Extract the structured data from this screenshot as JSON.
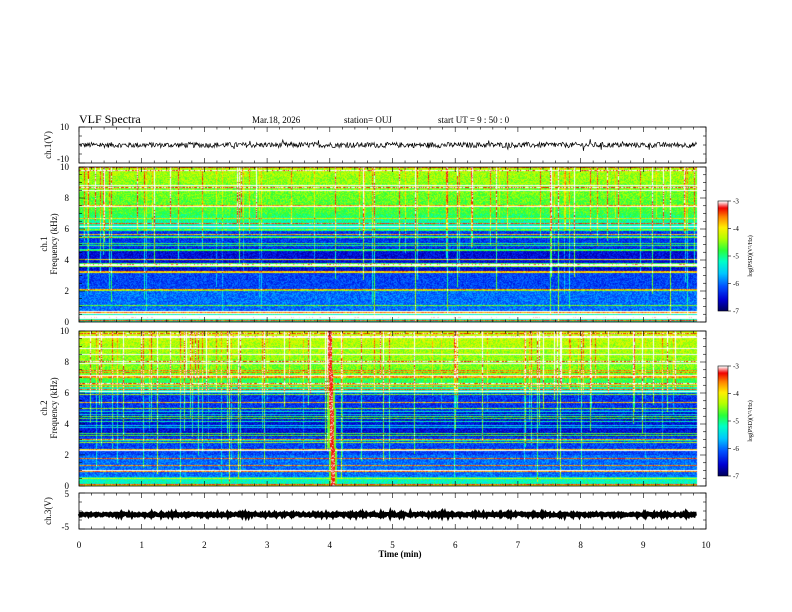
{
  "header": {
    "title": "VLF Spectra",
    "date": "Mar.18, 2026",
    "station": "station= OUJ",
    "start": "start  UT =   9 : 50 : 0"
  },
  "colors": {
    "spectrogram_scale": [
      "#000060",
      "#0000c8",
      "#0060ff",
      "#00c8ff",
      "#00ffb0",
      "#20ff20",
      "#c0ff00",
      "#ffff00",
      "#ff8000",
      "#ff0000",
      "#ffffff"
    ],
    "trace": "#000000"
  },
  "chart_data": [
    {
      "type": "line",
      "name": "ch1-waveform",
      "ylabel": "ch.1(V)",
      "ylim": [
        -10,
        10
      ],
      "yticks": [
        {
          "value": 10,
          "label": "10"
        },
        {
          "value": -10,
          "label": "-10"
        }
      ],
      "xlim": [
        0,
        10
      ],
      "trace_level": 0,
      "trace_amplitude": 1.5
    },
    {
      "type": "heatmap",
      "name": "ch1-spectrogram",
      "ylabel": "ch.1",
      "ylabel2": "Frequency  (kHz)",
      "ylim": [
        0,
        10
      ],
      "yticks": [
        {
          "value": 0,
          "label": "0"
        },
        {
          "value": 2,
          "label": "2"
        },
        {
          "value": 4,
          "label": "4"
        },
        {
          "value": 6,
          "label": "6"
        },
        {
          "value": 8,
          "label": "8"
        },
        {
          "value": 10,
          "label": "10"
        }
      ],
      "xlim": [
        0,
        10
      ],
      "data_end_min": 9.85,
      "colorbar": {
        "range": [
          -7,
          -3
        ],
        "ticks": [
          {
            "value": -3,
            "label": "-3"
          },
          {
            "value": -4,
            "label": "-4"
          },
          {
            "value": -5,
            "label": "-5"
          },
          {
            "value": -6,
            "label": "-6"
          },
          {
            "value": -7,
            "label": "-7"
          }
        ],
        "label": "log(PSD)(V²/Hz)"
      }
    },
    {
      "type": "heatmap",
      "name": "ch2-spectrogram",
      "ylabel": "ch.2",
      "ylabel2": "Frequency  (kHz)",
      "ylim": [
        0,
        10
      ],
      "yticks": [
        {
          "value": 0,
          "label": "0"
        },
        {
          "value": 2,
          "label": "2"
        },
        {
          "value": 4,
          "label": "4"
        },
        {
          "value": 6,
          "label": "6"
        },
        {
          "value": 8,
          "label": "8"
        },
        {
          "value": 10,
          "label": "10"
        }
      ],
      "xlim": [
        0,
        10
      ],
      "data_end_min": 9.85,
      "colorbar": {
        "range": [
          -7,
          -3
        ],
        "ticks": [
          {
            "value": -3,
            "label": "-3"
          },
          {
            "value": -4,
            "label": "-4"
          },
          {
            "value": -5,
            "label": "-5"
          },
          {
            "value": -6,
            "label": "-6"
          },
          {
            "value": -7,
            "label": "-7"
          }
        ],
        "label": "log(PSD)(V²/Hz)"
      }
    },
    {
      "type": "line",
      "name": "ch3-waveform",
      "ylabel": "ch.3(V)",
      "ylim": [
        -5,
        5
      ],
      "yticks": [
        {
          "value": 5,
          "label": "5"
        },
        {
          "value": -5,
          "label": "-5"
        }
      ],
      "xlim": [
        0,
        10
      ],
      "trace_level": -1,
      "trace_amplitude": 0.3
    }
  ],
  "xaxis": {
    "label": "Time  (min)",
    "ticks": [
      {
        "value": 0,
        "label": "0"
      },
      {
        "value": 1,
        "label": "1"
      },
      {
        "value": 2,
        "label": "2"
      },
      {
        "value": 3,
        "label": "3"
      },
      {
        "value": 4,
        "label": "4"
      },
      {
        "value": 5,
        "label": "5"
      },
      {
        "value": 6,
        "label": "6"
      },
      {
        "value": 7,
        "label": "7"
      },
      {
        "value": 8,
        "label": "8"
      },
      {
        "value": 9,
        "label": "9"
      },
      {
        "value": 10,
        "label": "10"
      }
    ]
  }
}
